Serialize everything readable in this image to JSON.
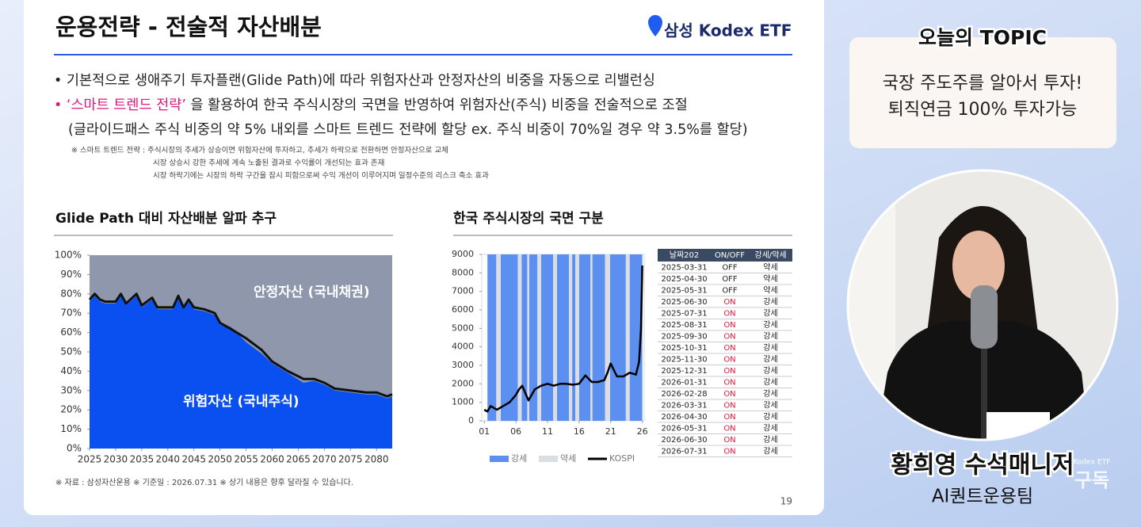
{
  "slide": {
    "title": "운용전략 - 전술적 자산배분",
    "logo": "삼성 Kodex ETF",
    "bullet1": "• 기본적으로 생애주기 투자플랜(Glide Path)에 따라 위험자산과 안정자산의 비중을 자동으로 리밸런싱",
    "bullet2_highlight": "• ‘스마트 트렌드 전략’",
    "bullet2_rest": " 을 활용하여 한국 주식시장의 국면을 반영하여 위험자산(주식) 비중을 전술적으로 조절",
    "bullet3": "(글라이드패스 주식 비중의 약 5% 내외를 스마트 트렌드 전략에 할당 ex. 주식 비중이 70%일 경우 약 3.5%를 할당)",
    "notes": [
      "※ 스마트 트렌드 전략 : 주식시장의 추세가 상승이면 위험자산에 투자하고, 추세가 하락으로 전환하면 안정자산으로 교체",
      "시장 상승시 강한 추세에 계속 노출된 결과로 수익률이 개선되는 효과 존재",
      "시장 하락기에는 시장의 하락 구간을 잠시 피함으로써 수익 개선이 이루어지며 일정수준의 리스크 축소 효과"
    ],
    "footnote": "※ 자료 : 삼성자산운용 ※ 기준일 : 2026.07.31 ※ 상기 내용은 향후 달라질 수 있습니다.",
    "page_number": "19"
  },
  "chart_data": [
    {
      "type": "area",
      "title": "Glide Path 대비 자산배분 알파 추구",
      "background_color": "#8e97ab",
      "annotations": [
        "안정자산 (국내채권)"
      ],
      "x": [
        2025,
        2026,
        2027,
        2028,
        2030,
        2031,
        2032,
        2034,
        2035,
        2037,
        2038,
        2041,
        2042,
        2043,
        2044,
        2045,
        2047,
        2049,
        2050,
        2052,
        2055,
        2058,
        2060,
        2063,
        2066,
        2068,
        2070,
        2072,
        2075,
        2078,
        2080,
        2082,
        2083
      ],
      "series": [
        {
          "name": "위험자산 (국내주식)",
          "color": "#0a4ff0",
          "values": [
            76,
            79,
            76,
            75,
            75,
            79,
            74,
            79,
            73,
            77,
            72,
            72,
            78,
            72,
            76,
            72,
            71,
            69,
            64,
            63,
            55,
            49,
            44,
            39,
            34,
            35,
            33,
            30,
            29,
            28,
            28,
            26,
            27
          ]
        },
        {
          "color": "#111111",
          "values": [
            77,
            80,
            77,
            76,
            76,
            80,
            75,
            80,
            74,
            78,
            73,
            73,
            79,
            73,
            77,
            73,
            72,
            70,
            65,
            62,
            57,
            51,
            45,
            40,
            36,
            36,
            34,
            31,
            30,
            29,
            29,
            27,
            28
          ]
        }
      ],
      "xlim": [
        2025,
        2083
      ],
      "xticks": [
        2025,
        2030,
        2035,
        2040,
        2045,
        2050,
        2055,
        2060,
        2065,
        2070,
        2075,
        2080
      ],
      "ylim": [
        0,
        100
      ],
      "yticks": [
        {
          "value": 0,
          "label": "0%"
        },
        {
          "value": 10,
          "label": "10%"
        },
        {
          "value": 20,
          "label": "20%"
        },
        {
          "value": 30,
          "label": "30%"
        },
        {
          "value": 40,
          "label": "40%"
        },
        {
          "value": 50,
          "label": "50%"
        },
        {
          "value": 60,
          "label": "60%"
        },
        {
          "value": 70,
          "label": "70%"
        },
        {
          "value": 80,
          "label": "80%"
        },
        {
          "value": 90,
          "label": "90%"
        },
        {
          "value": 100,
          "label": "100%"
        }
      ]
    },
    {
      "type": "line",
      "title": "한국 주식시장의 국면 구분",
      "series": [
        {
          "name": "강세",
          "color": "#5b8ff0",
          "spans": [
            [
              1.5,
              2.9
            ],
            [
              3.6,
              6.3
            ],
            [
              6.9,
              7.8
            ],
            [
              8.1,
              9.4
            ],
            [
              10,
              11.9
            ],
            [
              12.5,
              14.4
            ],
            [
              14.9,
              15.4
            ],
            [
              16,
              17.8
            ],
            [
              18.1,
              20.1
            ],
            [
              20.9,
              23.4
            ],
            [
              24,
              26
            ]
          ]
        },
        {
          "name": "약세",
          "color": "#dadde3",
          "spans": [
            [
              2.9,
              3.6
            ],
            [
              6.3,
              6.9
            ],
            [
              7.8,
              8.1
            ],
            [
              9.4,
              10
            ],
            [
              11.9,
              12.5
            ],
            [
              14.4,
              14.9
            ],
            [
              15.4,
              16
            ],
            [
              17.8,
              18.1
            ],
            [
              20.1,
              20.9
            ],
            [
              23.4,
              24
            ]
          ]
        },
        {
          "name": "KOSPI",
          "color": "#000000",
          "x": [
            1,
            1.5,
            2,
            2.5,
            3,
            4,
            5,
            6,
            6.5,
            7,
            7.5,
            8,
            9,
            10,
            11,
            12,
            13,
            14,
            15,
            16,
            17,
            18,
            19,
            20,
            20.5,
            21,
            22,
            23,
            24,
            25,
            25.5,
            25.8,
            26
          ],
          "values": [
            600,
            500,
            800,
            700,
            600,
            800,
            1000,
            1400,
            1700,
            1900,
            1500,
            1100,
            1700,
            1900,
            2000,
            1900,
            2000,
            2000,
            1950,
            2000,
            2450,
            2100,
            2100,
            2200,
            2600,
            3100,
            2400,
            2400,
            2600,
            2500,
            3200,
            5000,
            8400
          ]
        }
      ],
      "xlim": [
        0.6,
        26.3
      ],
      "xticks": [
        {
          "value": 1,
          "label": "01"
        },
        {
          "value": 6,
          "label": "06"
        },
        {
          "value": 11,
          "label": "11"
        },
        {
          "value": 16,
          "label": "16"
        },
        {
          "value": 21,
          "label": "21"
        },
        {
          "value": 26,
          "label": "26"
        }
      ],
      "ylim": [
        0,
        9000
      ],
      "yticks": [
        0,
        1000,
        2000,
        3000,
        4000,
        5000,
        6000,
        7000,
        8000,
        9000
      ]
    }
  ],
  "table": {
    "header": [
      "날짜202",
      "ON/OFF",
      "강세/약세"
    ],
    "rows": [
      {
        "cells": [
          "2025-03-31",
          "OFF",
          "약세"
        ],
        "color": "#222222"
      },
      {
        "cells": [
          "2025-04-30",
          "OFF",
          "약세"
        ],
        "color": "#222222"
      },
      {
        "cells": [
          "2025-05-31",
          "OFF",
          "약세"
        ],
        "color": "#222222"
      },
      {
        "cells": [
          "2025-06-30",
          "ON",
          "강세"
        ],
        "color": "#e3173e"
      },
      {
        "cells": [
          "2025-07-31",
          "ON",
          "강세"
        ],
        "color": "#e3173e"
      },
      {
        "cells": [
          "2025-08-31",
          "ON",
          "강세"
        ],
        "color": "#e3173e"
      },
      {
        "cells": [
          "2025-09-30",
          "ON",
          "강세"
        ],
        "color": "#e3173e"
      },
      {
        "cells": [
          "2025-10-31",
          "ON",
          "강세"
        ],
        "color": "#e3173e"
      },
      {
        "cells": [
          "2025-11-30",
          "ON",
          "강세"
        ],
        "color": "#e3173e"
      },
      {
        "cells": [
          "2025-12-31",
          "ON",
          "강세"
        ],
        "color": "#e3173e"
      },
      {
        "cells": [
          "2026-01-31",
          "ON",
          "강세"
        ],
        "color": "#e3173e"
      },
      {
        "cells": [
          "2026-02-28",
          "ON",
          "강세"
        ],
        "color": "#e3173e"
      },
      {
        "cells": [
          "2026-03-31",
          "ON",
          "강세"
        ],
        "color": "#e3173e"
      },
      {
        "cells": [
          "2026-04-30",
          "ON",
          "강세"
        ],
        "color": "#e3173e"
      },
      {
        "cells": [
          "2026-05-31",
          "ON",
          "강세"
        ],
        "color": "#e3173e"
      },
      {
        "cells": [
          "2026-06-30",
          "ON",
          "강세"
        ],
        "color": "#e3173e"
      },
      {
        "cells": [
          "2026-07-31",
          "ON",
          "강세"
        ],
        "color": "#e3173e"
      }
    ]
  },
  "sidebar": {
    "topic_title": "오늘의 TOPIC",
    "topic_lines": [
      "국장 주도주를 알아서 투자!",
      "퇴직연금 100% 투자가능"
    ],
    "speaker_name": "황희영 수석매니저",
    "speaker_team": "AI퀀트운용팀",
    "channel": "Kodex ETF",
    "subscribe": "구독"
  }
}
